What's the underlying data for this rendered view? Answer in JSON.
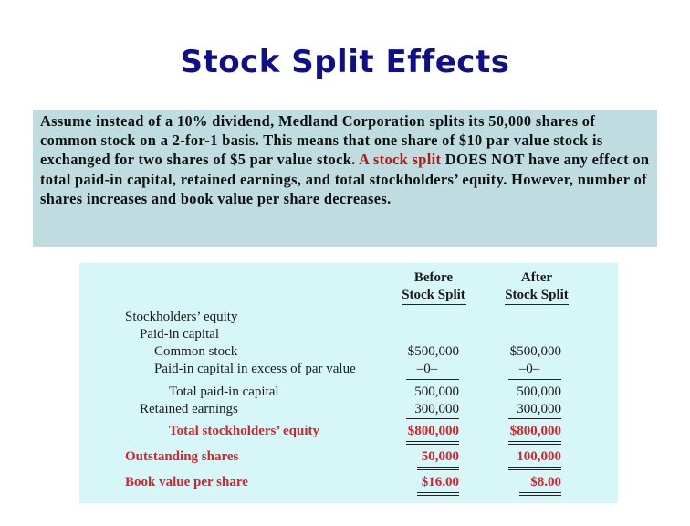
{
  "title": "Stock Split Effects",
  "intro": {
    "part1": "Assume instead of a 10% dividend, Medland Corporation splits its 50,000 shares of common stock on a 2-for-1 basis.  This means that one share of  $10 par value stock is exchanged for two shares of $5 par value stock. ",
    "part2_red": "A stock split",
    "part3": " DOES NOT have any effect on total paid-in capital, retained earnings, and total stockholders’ equity.  However, number of shares increases and book value per share decreases."
  },
  "table": {
    "col_before_line1": "Before",
    "col_before_line2": "Stock Split",
    "col_after_line1": "After",
    "col_after_line2": "Stock Split",
    "rows": {
      "section": "Stockholders’ equity",
      "paid_in": "Paid-in capital",
      "common": {
        "label": "Common stock",
        "before": "$500,000",
        "after": "$500,000"
      },
      "excess": {
        "label": "Paid-in capital in excess of par value",
        "before": "–0–",
        "after": "–0–"
      },
      "total_paid_in": {
        "label": "Total paid-in capital",
        "before": "500,000",
        "after": "500,000"
      },
      "retained": {
        "label": "Retained earnings",
        "before": "300,000",
        "after": "300,000"
      },
      "total_equity": {
        "label": "Total stockholders’ equity",
        "before": "$800,000",
        "after": "$800,000"
      },
      "outstanding": {
        "label": "Outstanding shares",
        "before": "50,000",
        "after": "100,000"
      },
      "book_value": {
        "label": "Book value per share",
        "before": "$16.00",
        "after": "$8.00"
      }
    }
  }
}
